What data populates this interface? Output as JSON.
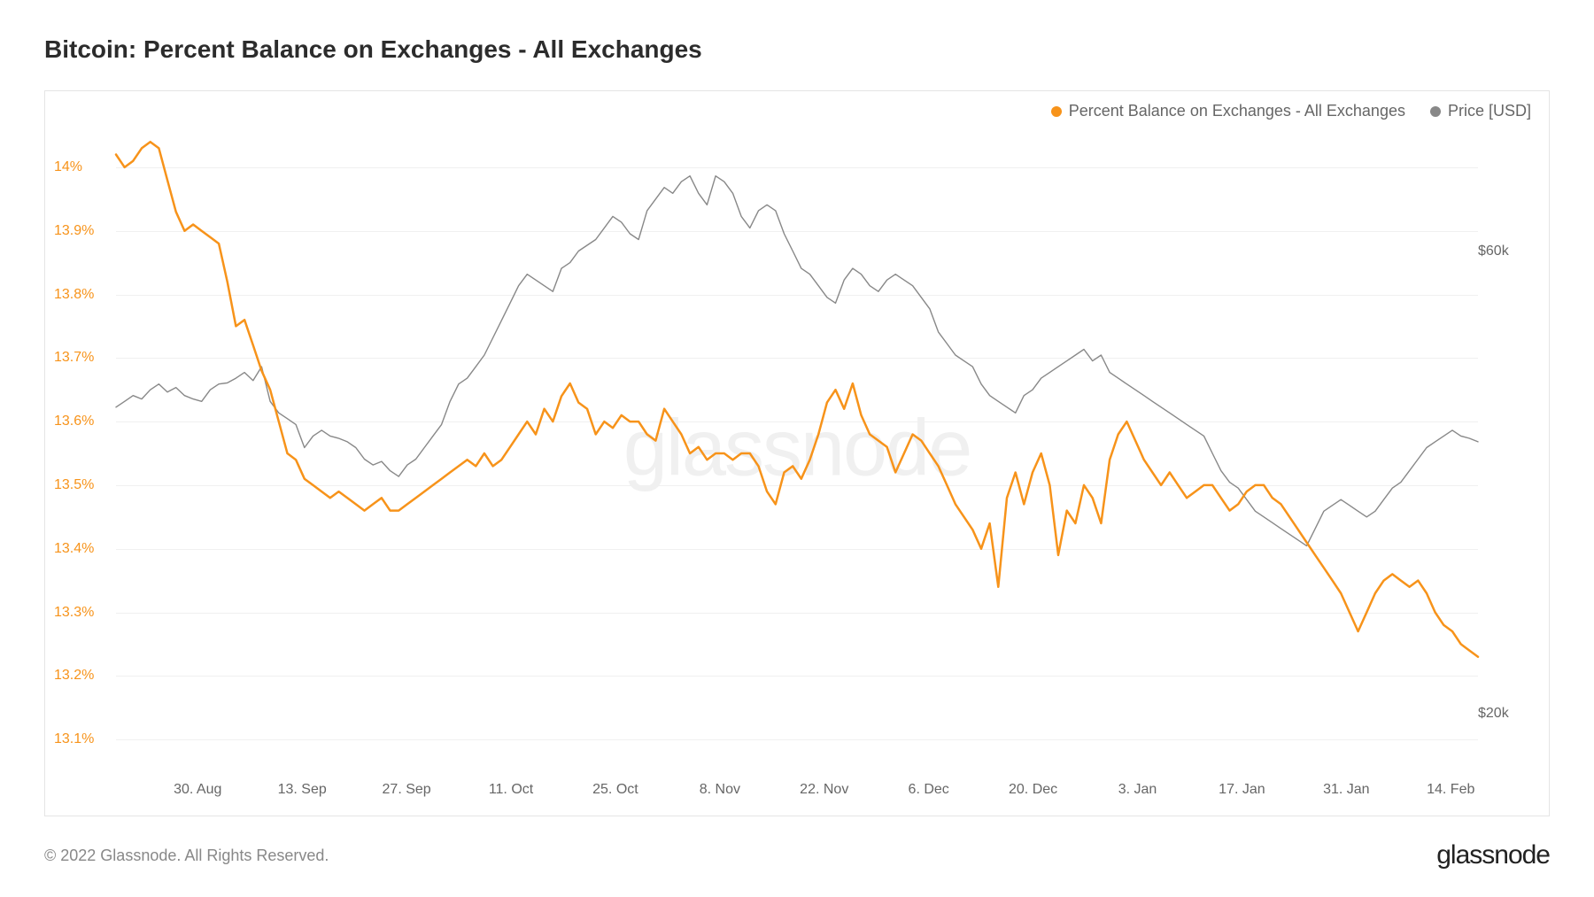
{
  "title": "Bitcoin: Percent Balance on Exchanges - All Exchanges",
  "copyright": "© 2022 Glassnode. All Rights Reserved.",
  "brand": "glassnode",
  "watermark": "glassnode",
  "legend": {
    "series1": {
      "label": "Percent Balance on Exchanges - All Exchanges",
      "color": "#f7931a"
    },
    "series2": {
      "label": "Price [USD]",
      "color": "#888888"
    }
  },
  "chart": {
    "type": "line",
    "background_color": "#ffffff",
    "border_color": "#e5e5e5",
    "grid_color": "#f0f0f0",
    "left_axis": {
      "color": "#f7931a",
      "ticks": [
        "14%",
        "13.9%",
        "13.8%",
        "13.7%",
        "13.6%",
        "13.5%",
        "13.4%",
        "13.3%",
        "13.2%",
        "13.1%"
      ],
      "min": 13.05,
      "max": 14.05
    },
    "right_axis": {
      "color": "#666666",
      "ticks": [
        {
          "label": "$60k",
          "value": 60000
        },
        {
          "label": "$20k",
          "value": 20000
        }
      ],
      "min": 15000,
      "max": 70000
    },
    "x_axis": {
      "labels": [
        "30. Aug",
        "13. Sep",
        "27. Sep",
        "11. Oct",
        "25. Oct",
        "8. Nov",
        "22. Nov",
        "6. Dec",
        "20. Dec",
        "3. Jan",
        "17. Jan",
        "31. Jan",
        "14. Feb"
      ],
      "color": "#666666"
    },
    "series_balance": {
      "color": "#f7931a",
      "line_width": 2.5,
      "data": [
        14.02,
        14.0,
        14.01,
        14.03,
        14.04,
        14.03,
        13.98,
        13.93,
        13.9,
        13.91,
        13.9,
        13.89,
        13.88,
        13.82,
        13.75,
        13.76,
        13.72,
        13.68,
        13.65,
        13.6,
        13.55,
        13.54,
        13.51,
        13.5,
        13.49,
        13.48,
        13.49,
        13.48,
        13.47,
        13.46,
        13.47,
        13.48,
        13.46,
        13.46,
        13.47,
        13.48,
        13.49,
        13.5,
        13.51,
        13.52,
        13.53,
        13.54,
        13.53,
        13.55,
        13.53,
        13.54,
        13.56,
        13.58,
        13.6,
        13.58,
        13.62,
        13.6,
        13.64,
        13.66,
        13.63,
        13.62,
        13.58,
        13.6,
        13.59,
        13.61,
        13.6,
        13.6,
        13.58,
        13.57,
        13.62,
        13.6,
        13.58,
        13.55,
        13.56,
        13.54,
        13.55,
        13.55,
        13.54,
        13.55,
        13.55,
        13.53,
        13.49,
        13.47,
        13.52,
        13.53,
        13.51,
        13.54,
        13.58,
        13.63,
        13.65,
        13.62,
        13.66,
        13.61,
        13.58,
        13.57,
        13.56,
        13.52,
        13.55,
        13.58,
        13.57,
        13.55,
        13.53,
        13.5,
        13.47,
        13.45,
        13.43,
        13.4,
        13.44,
        13.34,
        13.48,
        13.52,
        13.47,
        13.52,
        13.55,
        13.5,
        13.39,
        13.46,
        13.44,
        13.5,
        13.48,
        13.44,
        13.54,
        13.58,
        13.6,
        13.57,
        13.54,
        13.52,
        13.5,
        13.52,
        13.5,
        13.48,
        13.49,
        13.5,
        13.5,
        13.48,
        13.46,
        13.47,
        13.49,
        13.5,
        13.5,
        13.48,
        13.47,
        13.45,
        13.43,
        13.41,
        13.39,
        13.37,
        13.35,
        13.33,
        13.3,
        13.27,
        13.3,
        13.33,
        13.35,
        13.36,
        13.35,
        13.34,
        13.35,
        13.33,
        13.3,
        13.28,
        13.27,
        13.25,
        13.24,
        13.23
      ]
    },
    "series_price": {
      "color": "#888888",
      "line_width": 1.4,
      "data": [
        46500,
        47000,
        47500,
        47200,
        48000,
        48500,
        47800,
        48200,
        47500,
        47200,
        47000,
        48000,
        48500,
        48600,
        49000,
        49500,
        48800,
        50000,
        47000,
        46000,
        45500,
        45000,
        43000,
        44000,
        44500,
        44000,
        43800,
        43500,
        43000,
        42000,
        41500,
        41800,
        41000,
        40500,
        41500,
        42000,
        43000,
        44000,
        45000,
        47000,
        48500,
        49000,
        50000,
        51000,
        52500,
        54000,
        55500,
        57000,
        58000,
        57500,
        57000,
        56500,
        58500,
        59000,
        60000,
        60500,
        61000,
        62000,
        63000,
        62500,
        61500,
        61000,
        63500,
        64500,
        65500,
        65000,
        66000,
        66500,
        65000,
        64000,
        66500,
        66000,
        65000,
        63000,
        62000,
        63500,
        64000,
        63500,
        61500,
        60000,
        58500,
        58000,
        57000,
        56000,
        55500,
        57500,
        58500,
        58000,
        57000,
        56500,
        57500,
        58000,
        57500,
        57000,
        56000,
        55000,
        53000,
        52000,
        51000,
        50500,
        50000,
        48500,
        47500,
        47000,
        46500,
        46000,
        47500,
        48000,
        49000,
        49500,
        50000,
        50500,
        51000,
        51500,
        50500,
        51000,
        49500,
        49000,
        48500,
        48000,
        47500,
        47000,
        46500,
        46000,
        45500,
        45000,
        44500,
        44000,
        42500,
        41000,
        40000,
        39500,
        38500,
        37500,
        37000,
        36500,
        36000,
        35500,
        35000,
        34500,
        36000,
        37500,
        38000,
        38500,
        38000,
        37500,
        37000,
        37500,
        38500,
        39500,
        40000,
        41000,
        42000,
        43000,
        43500,
        44000,
        44500,
        44000,
        43800,
        43500
      ]
    }
  }
}
